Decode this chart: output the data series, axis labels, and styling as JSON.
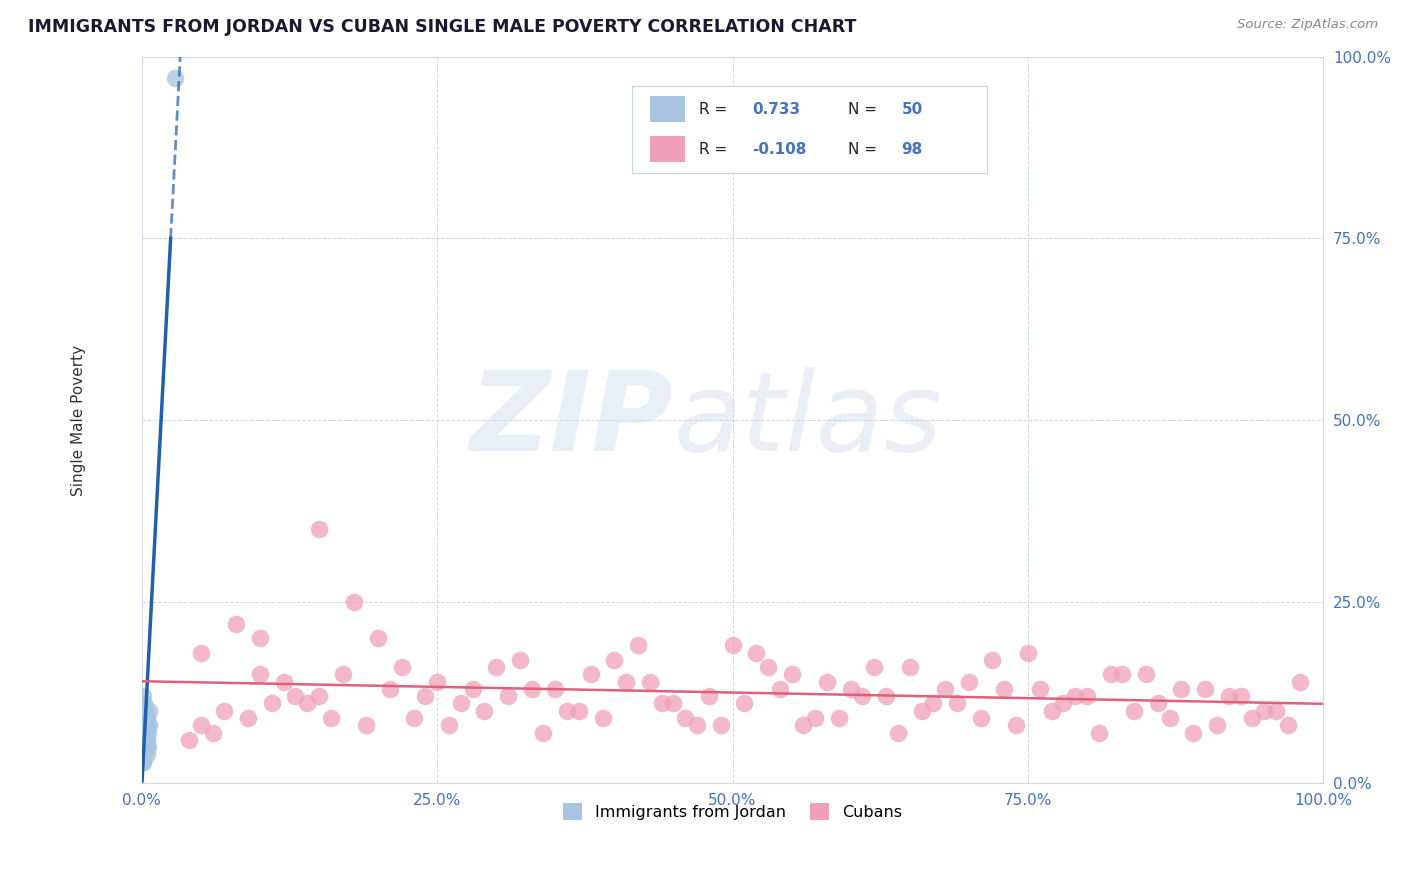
{
  "title": "IMMIGRANTS FROM JORDAN VS CUBAN SINGLE MALE POVERTY CORRELATION CHART",
  "source": "Source: ZipAtlas.com",
  "ylabel": "Single Male Poverty",
  "legend_label1": "Immigrants from Jordan",
  "legend_label2": "Cubans",
  "r1": 0.733,
  "n1": 50,
  "r2": -0.108,
  "n2": 98,
  "color_jordan": "#a8c4e0",
  "color_cuban": "#f0a0b8",
  "color_jordan_line": "#2060a8",
  "color_cuban_line": "#e0607a",
  "ytick_labels": [
    "0.0%",
    "25.0%",
    "50.0%",
    "75.0%",
    "100.0%"
  ],
  "ytick_vals": [
    0.0,
    0.25,
    0.5,
    0.75,
    1.0
  ],
  "xtick_labels": [
    "0.0%",
    "25.0%",
    "50.0%",
    "75.0%",
    "100.0%"
  ],
  "xtick_vals": [
    0.0,
    0.25,
    0.5,
    0.75,
    1.0
  ],
  "jordan_x": [
    0.001,
    0.002,
    0.001,
    0.003,
    0.002,
    0.004,
    0.001,
    0.003,
    0.005,
    0.002,
    0.001,
    0.003,
    0.002,
    0.004,
    0.006,
    0.001,
    0.002,
    0.003,
    0.005,
    0.004,
    0.001,
    0.002,
    0.001,
    0.003,
    0.002,
    0.001,
    0.004,
    0.002,
    0.003,
    0.001,
    0.002,
    0.001,
    0.003,
    0.002,
    0.004,
    0.001,
    0.005,
    0.002,
    0.001,
    0.003,
    0.002,
    0.004,
    0.001,
    0.002,
    0.003,
    0.006,
    0.002,
    0.001,
    0.003,
    0.028
  ],
  "jordan_y": [
    0.08,
    0.05,
    0.12,
    0.07,
    0.09,
    0.06,
    0.04,
    0.1,
    0.08,
    0.06,
    0.03,
    0.09,
    0.07,
    0.05,
    0.08,
    0.11,
    0.06,
    0.1,
    0.07,
    0.09,
    0.04,
    0.06,
    0.08,
    0.05,
    0.07,
    0.03,
    0.09,
    0.06,
    0.08,
    0.05,
    0.1,
    0.04,
    0.07,
    0.09,
    0.06,
    0.08,
    0.05,
    0.11,
    0.07,
    0.06,
    0.08,
    0.04,
    0.09,
    0.07,
    0.05,
    0.1,
    0.06,
    0.08,
    0.07,
    0.97
  ],
  "cuban_x": [
    0.05,
    0.1,
    0.15,
    0.2,
    0.25,
    0.3,
    0.35,
    0.4,
    0.45,
    0.5,
    0.55,
    0.6,
    0.65,
    0.7,
    0.75,
    0.8,
    0.85,
    0.9,
    0.95,
    0.1,
    0.08,
    0.12,
    0.18,
    0.22,
    0.28,
    0.32,
    0.38,
    0.42,
    0.48,
    0.52,
    0.58,
    0.62,
    0.68,
    0.72,
    0.78,
    0.82,
    0.88,
    0.92,
    0.98,
    0.15,
    0.05,
    0.07,
    0.13,
    0.17,
    0.23,
    0.27,
    0.33,
    0.37,
    0.43,
    0.47,
    0.53,
    0.57,
    0.63,
    0.67,
    0.73,
    0.77,
    0.83,
    0.87,
    0.93,
    0.97,
    0.06,
    0.11,
    0.16,
    0.21,
    0.26,
    0.31,
    0.36,
    0.41,
    0.46,
    0.51,
    0.56,
    0.61,
    0.66,
    0.71,
    0.76,
    0.81,
    0.86,
    0.91,
    0.96,
    0.04,
    0.09,
    0.14,
    0.19,
    0.24,
    0.29,
    0.34,
    0.39,
    0.44,
    0.49,
    0.54,
    0.59,
    0.64,
    0.69,
    0.74,
    0.79,
    0.84,
    0.89,
    0.94
  ],
  "cuban_y": [
    0.18,
    0.15,
    0.12,
    0.2,
    0.14,
    0.16,
    0.13,
    0.17,
    0.11,
    0.19,
    0.15,
    0.13,
    0.16,
    0.14,
    0.18,
    0.12,
    0.15,
    0.13,
    0.1,
    0.2,
    0.22,
    0.14,
    0.25,
    0.16,
    0.13,
    0.17,
    0.15,
    0.19,
    0.12,
    0.18,
    0.14,
    0.16,
    0.13,
    0.17,
    0.11,
    0.15,
    0.13,
    0.12,
    0.14,
    0.35,
    0.08,
    0.1,
    0.12,
    0.15,
    0.09,
    0.11,
    0.13,
    0.1,
    0.14,
    0.08,
    0.16,
    0.09,
    0.12,
    0.11,
    0.13,
    0.1,
    0.15,
    0.09,
    0.12,
    0.08,
    0.07,
    0.11,
    0.09,
    0.13,
    0.08,
    0.12,
    0.1,
    0.14,
    0.09,
    0.11,
    0.08,
    0.12,
    0.1,
    0.09,
    0.13,
    0.07,
    0.11,
    0.08,
    0.1,
    0.06,
    0.09,
    0.11,
    0.08,
    0.12,
    0.1,
    0.07,
    0.09,
    0.11,
    0.08,
    0.13,
    0.09,
    0.07,
    0.11,
    0.08,
    0.12,
    0.1,
    0.07,
    0.09
  ]
}
